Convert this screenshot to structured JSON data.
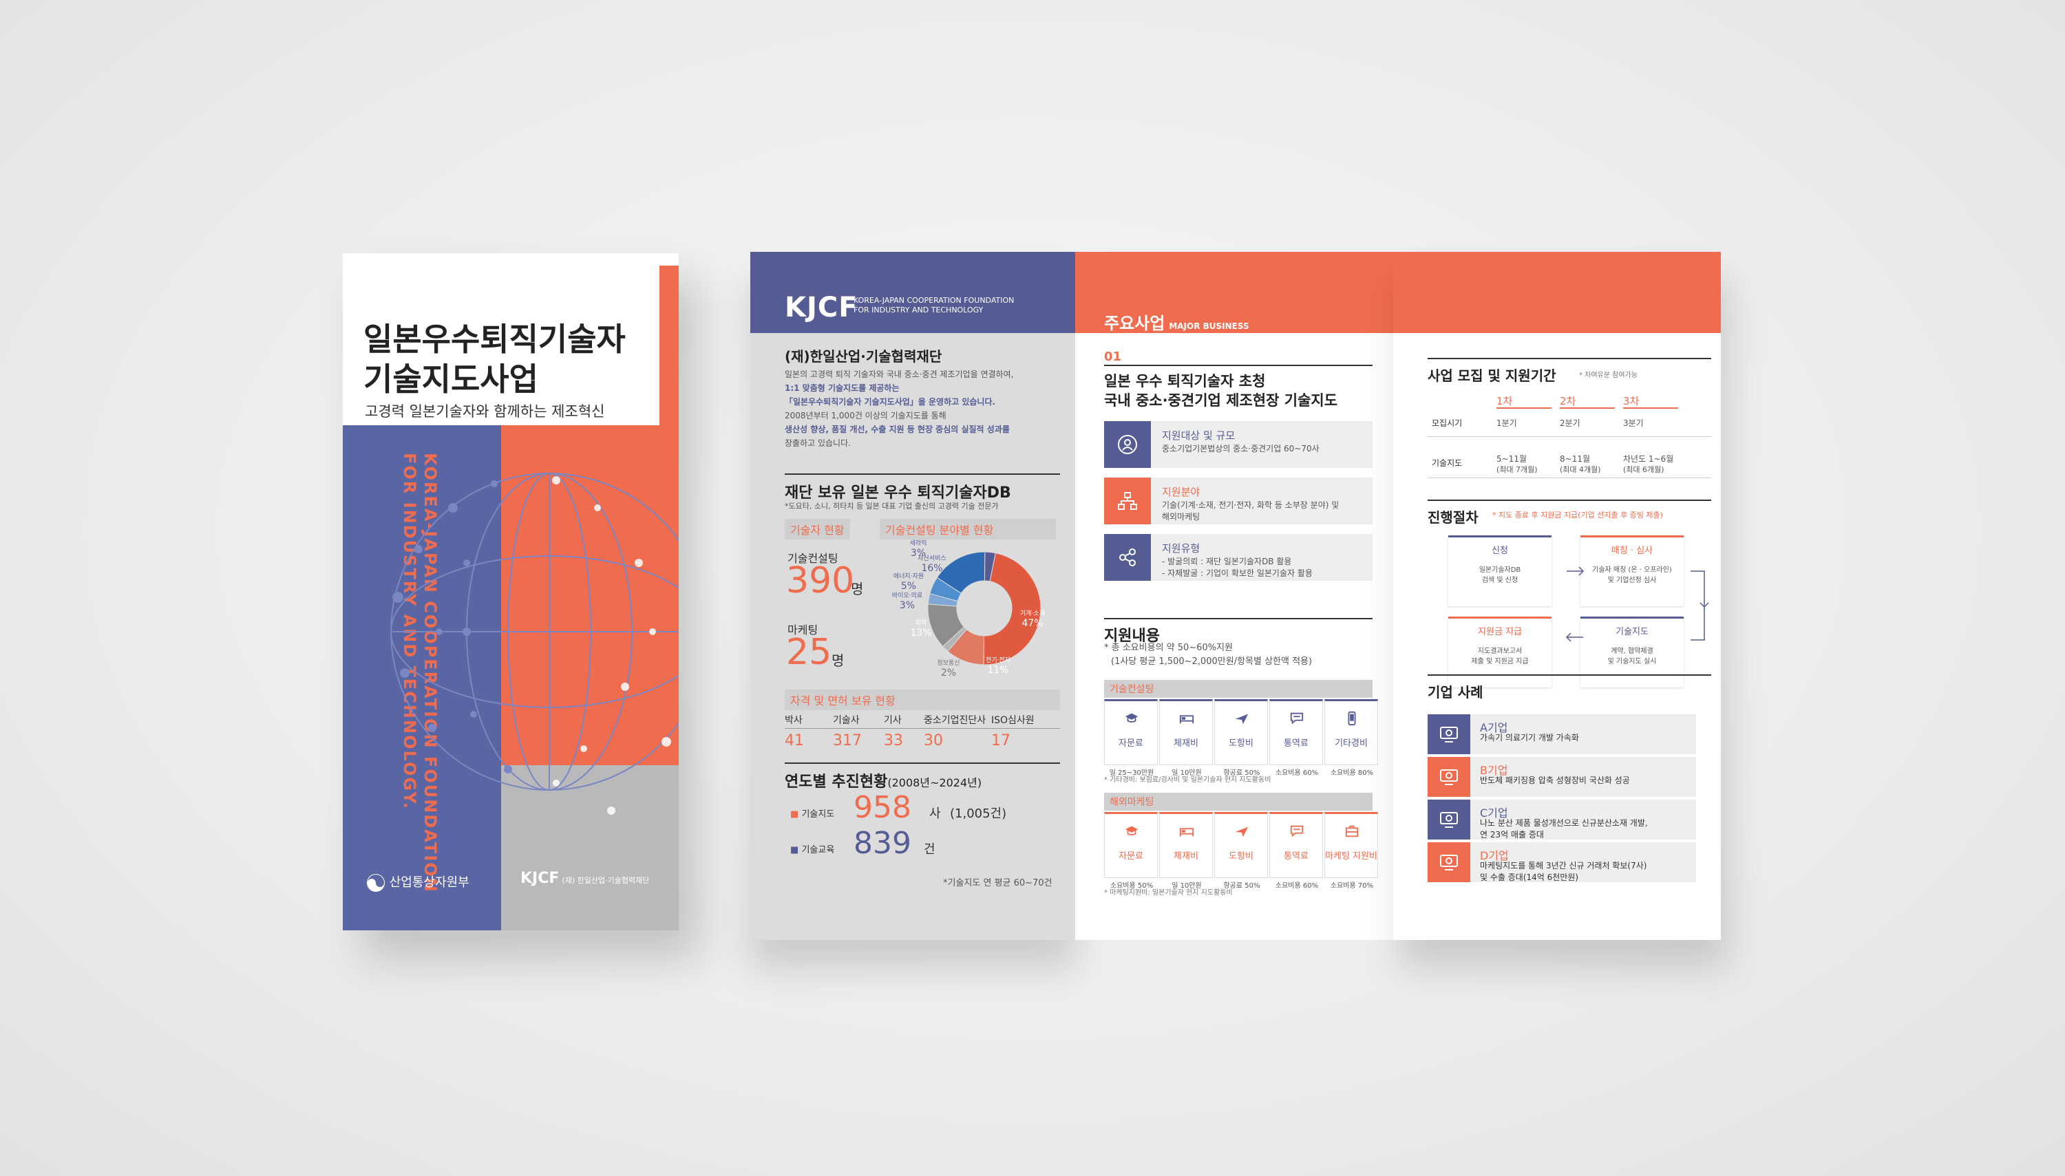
{
  "cover": {
    "title": "일본우수퇴직기술자\n기술지도사업",
    "subtitle": "고경력 일본기술자와 함께하는 제조혁신",
    "vertical_text_1": "KOREA-JAPAN COOPERATION FOUNDATION",
    "vertical_text_2": "FOR INDUSTRY AND TECHNOLOGY.",
    "ministry": "산업통상자원부",
    "logo": "KJCF",
    "logo_sub": "(재) 한일산업·기술협력재단"
  },
  "panel1": {
    "logo": "KJCF",
    "logo_en": "KOREA-JAPAN COOPERATION FOUNDATION\nFOR INDUSTRY AND TECHNOLOGY",
    "foundation_title": "(재)한일산업·기술협력재단",
    "foundation_body_1": "일본의 고경력 퇴직 기술자와 국내 중소·중견 제조기업을 연결하여,",
    "foundation_body_2": "1:1 맞춤형 기술지도를 제공하는",
    "foundation_body_3": "「일본우수퇴직기술자 기술지도사업」을 운영하고 있습니다.",
    "foundation_body_4": "2008년부터 1,000건 이상의 기술지도를 통해",
    "foundation_body_5": "생산성 향상, 품질 개선, 수출 지원 등 현장 중심의 실질적 성과를",
    "foundation_body_6": "창출하고 있습니다.",
    "db_title": "재단 보유 일본 우수 퇴직기술자DB",
    "db_note": "*도요타, 소니, 히타치 등 일본 대표 기업 출신의 고경력 기술 전문가",
    "tag_status": "기술자 현황",
    "tag_field": "기술컨설팅 분야별 현황",
    "consult_label": "기술컨설팅",
    "consult_value": "390",
    "consult_unit": "명",
    "marketing_label": "마케팅",
    "marketing_value": "25",
    "marketing_unit": "명",
    "license_tag": "자격 및 면허 보유 현황",
    "license_headers": [
      "박사",
      "기술사",
      "기사",
      "중소기업진단사",
      "ISO심사원"
    ],
    "license_values": [
      "41",
      "317",
      "33",
      "30",
      "17"
    ],
    "yearly_title": "연도별 추진현황",
    "yearly_period": "(2008년~2024년)",
    "tech_guide_label": "기술지도",
    "tech_guide_value": "958",
    "tech_guide_unit": "사",
    "tech_guide_cases": "(1,005건)",
    "tech_edu_label": "기술교육",
    "tech_edu_value": "839",
    "tech_edu_unit": "건",
    "yearly_note": "*기술지도 연 평균 60~70건"
  },
  "chart_data": {
    "type": "pie",
    "title": "기술컨설팅 분야별 현황",
    "categories": [
      "기계·소재",
      "전기·전자",
      "정보통신",
      "화학",
      "바이오·의료",
      "에너지·자원",
      "자산서비스",
      "세라믹"
    ],
    "values": [
      47,
      11,
      2,
      13,
      3,
      5,
      16,
      3
    ],
    "unit": "%",
    "colors": [
      "#e05a40",
      "#e07a62",
      "#b5b5b5",
      "#8d8d8d",
      "#7fa8d6",
      "#4f8fcf",
      "#2f6bb5",
      "#555c94"
    ]
  },
  "panel2": {
    "header": "주요사업",
    "header_en": "MAJOR BUSINESS",
    "number": "01",
    "title_1": "일본 우수 퇴직기술자 초청",
    "title_2": "국내 중소·중견기업 제조현장 기술지도",
    "items": [
      {
        "title": "지원대상 및 규모",
        "desc": "중소기업기본법상의 중소·중견기업 60~70사",
        "color": "#555c94"
      },
      {
        "title": "지원분야",
        "desc": "기술(기계·소재, 전기·전자, 화학 등 소부장 분야) 및\n해외마케팅",
        "color": "#f06c4e"
      },
      {
        "title": "지원유형",
        "desc": "- 발굴의뢰 : 재단 일본기술자DB 활용\n- 자체발굴 : 기업이 확보한 일본기술자 활용",
        "color": "#555c94"
      }
    ],
    "support_title": "지원내용",
    "support_note_1": "* 총 소요비용의 약 50~60%지원",
    "support_note_2": "(1사당 평균 1,500~2,000만원/항목별 상한액 적용)",
    "tech_tag": "기술컨설팅",
    "tech_cards": [
      {
        "label": "자문료",
        "value": "일 25~30만원",
        "icon": "graduation-cap-icon"
      },
      {
        "label": "체재비",
        "value": "일 10만원",
        "icon": "bed-icon"
      },
      {
        "label": "도항비",
        "value": "항공료 50%",
        "icon": "airplane-icon"
      },
      {
        "label": "통역료",
        "value": "소요비용 60%",
        "icon": "speech-bubble-icon"
      },
      {
        "label": "기타경비",
        "value": "소요비용 80%",
        "icon": "phone-icon"
      }
    ],
    "tech_note": "* 기타경비: 보험료/검사비 및 일본기술자 현지 지도활동비",
    "overseas_tag": "해외마케팅",
    "overseas_cards": [
      {
        "label": "자문료",
        "value": "소요비용 50%",
        "icon": "graduation-cap-icon"
      },
      {
        "label": "체재비",
        "value": "일 10만원",
        "icon": "bed-icon"
      },
      {
        "label": "도항비",
        "value": "항공료 50%",
        "icon": "airplane-icon"
      },
      {
        "label": "통역료",
        "value": "소요비용 60%",
        "icon": "speech-bubble-icon"
      },
      {
        "label": "마케팅 지원비",
        "value": "소요비용 70%",
        "icon": "briefcase-icon"
      }
    ],
    "overseas_note": "* 마케팅지원비: 일본기술자 현지 지도활동비"
  },
  "panel3": {
    "recruit_title": "사업 모집 및 지원기간",
    "recruit_note": "* 차여유분 참여가능",
    "rounds": [
      "1차",
      "2차",
      "3차"
    ],
    "row1_label": "모집시기",
    "row1": [
      "1분기",
      "2분기",
      "3분기"
    ],
    "row2_label": "기술지도",
    "row2": [
      "5~11월",
      "8~11월",
      "차년도 1~6월"
    ],
    "row2_sub": [
      "(최대 7개월)",
      "(최대 4개월)",
      "(최대 6개월)"
    ],
    "process_title": "진행절차",
    "process_note": "* 지도 종료 후 지원금 지급(기업 선지출 후 증빙 제출)",
    "steps": [
      {
        "title": "신청",
        "desc": "일본기술자DB\n검색 및 신청"
      },
      {
        "title": "매칭 · 심사",
        "desc": "기술자 매칭 (온 · 오프라인)\n및 기업선정 심사"
      },
      {
        "title": "지원금 지급",
        "desc": "지도결과보고서\n제출 및 지원금 지급"
      },
      {
        "title": "기술지도",
        "desc": "계약, 협약체결\n및 기술지도 실시"
      }
    ],
    "cases_title": "기업 사례",
    "cases": [
      {
        "title": "A기업",
        "desc": "가속기 의료기기 개발 가속화",
        "color": "#555c94",
        "icon": "stethoscope-icon"
      },
      {
        "title": "B기업",
        "desc": "반도체 패키징용 압축 성형장비 국산화 성공",
        "color": "#f06c4e",
        "icon": "chip-icon"
      },
      {
        "title": "C기업",
        "desc": "나노 분산 제품 물성개선으로 신규분산소재 개발,\n연 23억 매출 증대",
        "color": "#555c94",
        "icon": "lab-icon"
      },
      {
        "title": "D기업",
        "desc": "마케팅지도를 통해 3년간 신규 거래처 확보(7사)\n및 수출 증대(14억 6천만원)",
        "color": "#f06c4e",
        "icon": "presentation-icon"
      }
    ]
  }
}
